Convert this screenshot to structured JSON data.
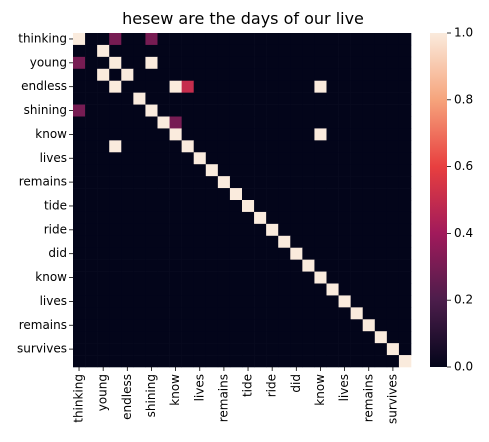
{
  "chart_data": {
    "type": "heatmap",
    "title": "hesew are the days of our live",
    "xlabel": "",
    "ylabel": "",
    "labels": [
      "thinking",
      "young",
      "endless",
      "shining",
      "know",
      "lives",
      "remains",
      "tide",
      "ride",
      "did",
      "know",
      "lives",
      "remains",
      "survives"
    ],
    "x_tick_labels": [
      "thinking",
      "young",
      "endless",
      "shining",
      "know",
      "lives",
      "remains",
      "tide",
      "ride",
      "did",
      "know",
      "lives",
      "remains",
      "survives"
    ],
    "y_tick_labels": [
      "thinking",
      "young",
      "endless",
      "shining",
      "know",
      "lives",
      "remains",
      "tide",
      "ride",
      "did",
      "know",
      "lives",
      "remains",
      "survives"
    ],
    "row_labels": [
      "thinking",
      "",
      "young",
      "",
      "endless",
      "",
      "shining",
      "",
      "know",
      "",
      "lives",
      "",
      "remains",
      "",
      "tide",
      "",
      "ride",
      "",
      "did",
      "",
      "know",
      "",
      "lives",
      "",
      "remains",
      "",
      "survives",
      ""
    ],
    "col_labels": [
      "thinking",
      "",
      "young",
      "",
      "endless",
      "",
      "shining",
      "",
      "know",
      "",
      "lives",
      "",
      "remains",
      "",
      "tide",
      "",
      "ride",
      "",
      "did",
      "",
      "know",
      "",
      "lives",
      "",
      "remains",
      "",
      "survives",
      ""
    ],
    "colormap": "rocket",
    "vmin": 0,
    "vmax": 1,
    "colorbar_ticks": [
      "0.0",
      "0.2",
      "0.4",
      "0.6",
      "0.8",
      "1.0"
    ],
    "values": [
      [
        1,
        0,
        0,
        0.3,
        0,
        0,
        0.3,
        0,
        0,
        0,
        0,
        0,
        0,
        0,
        0,
        0,
        0,
        0,
        0,
        0,
        0,
        0,
        0,
        0,
        0,
        0,
        0,
        0
      ],
      [
        0,
        0,
        1,
        0,
        0,
        0,
        0,
        0,
        0,
        0,
        0,
        0,
        0,
        0,
        0,
        0,
        0,
        0,
        0,
        0,
        0,
        0,
        0,
        0,
        0,
        0,
        0,
        0
      ],
      [
        0.3,
        0,
        0,
        1,
        0,
        0,
        1,
        0,
        0,
        0,
        0,
        0,
        0,
        0,
        0,
        0,
        0,
        0,
        0,
        0,
        0,
        0,
        0,
        0,
        0,
        0,
        0,
        0
      ],
      [
        0,
        0,
        1,
        0,
        1,
        0,
        0,
        0,
        0,
        0,
        0,
        0,
        0,
        0,
        0,
        0,
        0,
        0,
        0,
        0,
        0,
        0,
        0,
        0,
        0,
        0,
        0,
        0
      ],
      [
        0,
        0,
        0,
        1,
        0,
        0,
        0,
        0,
        1,
        0.5,
        0,
        0,
        0,
        0,
        0,
        0,
        0,
        0,
        0,
        0,
        1,
        0,
        0,
        0,
        0,
        0,
        0,
        0
      ],
      [
        0,
        0,
        0,
        0,
        0,
        1,
        0,
        0,
        0,
        0,
        0,
        0,
        0,
        0,
        0,
        0,
        0,
        0,
        0,
        0,
        0,
        0,
        0,
        0,
        0,
        0,
        0,
        0
      ],
      [
        0.3,
        0,
        0,
        0,
        0,
        0,
        1,
        0,
        0,
        0,
        0,
        0,
        0,
        0,
        0,
        0,
        0,
        0,
        0,
        0,
        0,
        0,
        0,
        0,
        0,
        0,
        0,
        0
      ],
      [
        0,
        0,
        0,
        0,
        0,
        0,
        0,
        1,
        0.3,
        0,
        0,
        0,
        0,
        0,
        0,
        0,
        0,
        0,
        0,
        0,
        0,
        0,
        0,
        0,
        0,
        0,
        0,
        0
      ],
      [
        0,
        0,
        0,
        0,
        0,
        0,
        0,
        0,
        1,
        0,
        0,
        0,
        0,
        0,
        0,
        0,
        0,
        0,
        0,
        0,
        1,
        0,
        0,
        0,
        0,
        0,
        0,
        0
      ],
      [
        0,
        0,
        0,
        1,
        0,
        0,
        0,
        0,
        0,
        1,
        0,
        0,
        0,
        0,
        0,
        0,
        0,
        0,
        0,
        0,
        0,
        0,
        0,
        0,
        0,
        0,
        0,
        0
      ],
      [
        0,
        0,
        0,
        0,
        0,
        0,
        0,
        0,
        0,
        0,
        1,
        0,
        0,
        0,
        0,
        0,
        0,
        0,
        0,
        0,
        0,
        0,
        0,
        0,
        0,
        0,
        0,
        0
      ],
      [
        0,
        0,
        0,
        0,
        0,
        0,
        0,
        0,
        0,
        0,
        0,
        1,
        0,
        0,
        0,
        0,
        0,
        0,
        0,
        0,
        0,
        0,
        0,
        0,
        0,
        0,
        0,
        0
      ],
      [
        0,
        0,
        0,
        0,
        0,
        0,
        0,
        0,
        0,
        0,
        0,
        0,
        1,
        0,
        0,
        0,
        0,
        0,
        0,
        0,
        0,
        0,
        0,
        0,
        0,
        0,
        0,
        0
      ],
      [
        0,
        0,
        0,
        0,
        0,
        0,
        0,
        0,
        0,
        0,
        0,
        0,
        0,
        1,
        0,
        0,
        0,
        0,
        0,
        0,
        0,
        0,
        0,
        0,
        0,
        0,
        0,
        0
      ],
      [
        0,
        0,
        0,
        0,
        0,
        0,
        0,
        0,
        0,
        0,
        0,
        0,
        0,
        0,
        1,
        0,
        0,
        0,
        0,
        0,
        0,
        0,
        0,
        0,
        0,
        0,
        0,
        0
      ],
      [
        0,
        0,
        0,
        0,
        0,
        0,
        0,
        0,
        0,
        0,
        0,
        0,
        0,
        0,
        0,
        1,
        0,
        0,
        0,
        0,
        0,
        0,
        0,
        0,
        0,
        0,
        0,
        0
      ],
      [
        0,
        0,
        0,
        0,
        0,
        0,
        0,
        0,
        0,
        0,
        0,
        0,
        0,
        0,
        0,
        0,
        1,
        0,
        0,
        0,
        0,
        0,
        0,
        0,
        0,
        0,
        0,
        0
      ],
      [
        0,
        0,
        0,
        0,
        0,
        0,
        0,
        0,
        0,
        0,
        0,
        0,
        0,
        0,
        0,
        0,
        0,
        1,
        0,
        0,
        0,
        0,
        0,
        0,
        0,
        0,
        0,
        0
      ],
      [
        0,
        0,
        0,
        0,
        0,
        0,
        0,
        0,
        0,
        0,
        0,
        0,
        0,
        0,
        0,
        0,
        0,
        0,
        1,
        0,
        0,
        0,
        0,
        0,
        0,
        0,
        0,
        0
      ],
      [
        0,
        0,
        0,
        0,
        0,
        0,
        0,
        0,
        0,
        0,
        0,
        0,
        0,
        0,
        0,
        0,
        0,
        0,
        0,
        1,
        0,
        0,
        0,
        0,
        0,
        0,
        0,
        0
      ],
      [
        0,
        0,
        0,
        0,
        0,
        0,
        0,
        0,
        0,
        0,
        0,
        0,
        0,
        0,
        0,
        0,
        0,
        0,
        0,
        0,
        1,
        0,
        0,
        0,
        0,
        0,
        0,
        0
      ],
      [
        0,
        0,
        0,
        0,
        0,
        0,
        0,
        0,
        0,
        0,
        0,
        0,
        0,
        0,
        0,
        0,
        0,
        0,
        0,
        0,
        0,
        1,
        0,
        0,
        0,
        0,
        0,
        0
      ],
      [
        0,
        0,
        0,
        0,
        0,
        0,
        0,
        0,
        0,
        0,
        0,
        0,
        0,
        0,
        0,
        0,
        0,
        0,
        0,
        0,
        0,
        0,
        1,
        0,
        0,
        0,
        0,
        0
      ],
      [
        0,
        0,
        0,
        0,
        0,
        0,
        0,
        0,
        0,
        0,
        0,
        0,
        0,
        0,
        0,
        0,
        0,
        0,
        0,
        0,
        0,
        0,
        0,
        1,
        0,
        0,
        0,
        0
      ],
      [
        0,
        0,
        0,
        0,
        0,
        0,
        0,
        0,
        0,
        0,
        0,
        0,
        0,
        0,
        0,
        0,
        0,
        0,
        0,
        0,
        0,
        0,
        0,
        0,
        1,
        0,
        0,
        0
      ],
      [
        0,
        0,
        0,
        0,
        0,
        0,
        0,
        0,
        0,
        0,
        0,
        0,
        0,
        0,
        0,
        0,
        0,
        0,
        0,
        0,
        0,
        0,
        0,
        0,
        0,
        1,
        0,
        0
      ],
      [
        0,
        0,
        0,
        0,
        0,
        0,
        0,
        0,
        0,
        0,
        0,
        0,
        0,
        0,
        0,
        0,
        0,
        0,
        0,
        0,
        0,
        0,
        0,
        0,
        0,
        0,
        1,
        0
      ],
      [
        0,
        0,
        0,
        0,
        0,
        0,
        0,
        0,
        0,
        0,
        0,
        0,
        0,
        0,
        0,
        0,
        0,
        0,
        0,
        0,
        0,
        0,
        0,
        0,
        0,
        0,
        0,
        1
      ]
    ],
    "grid": false,
    "legend": "colorbar-right"
  }
}
